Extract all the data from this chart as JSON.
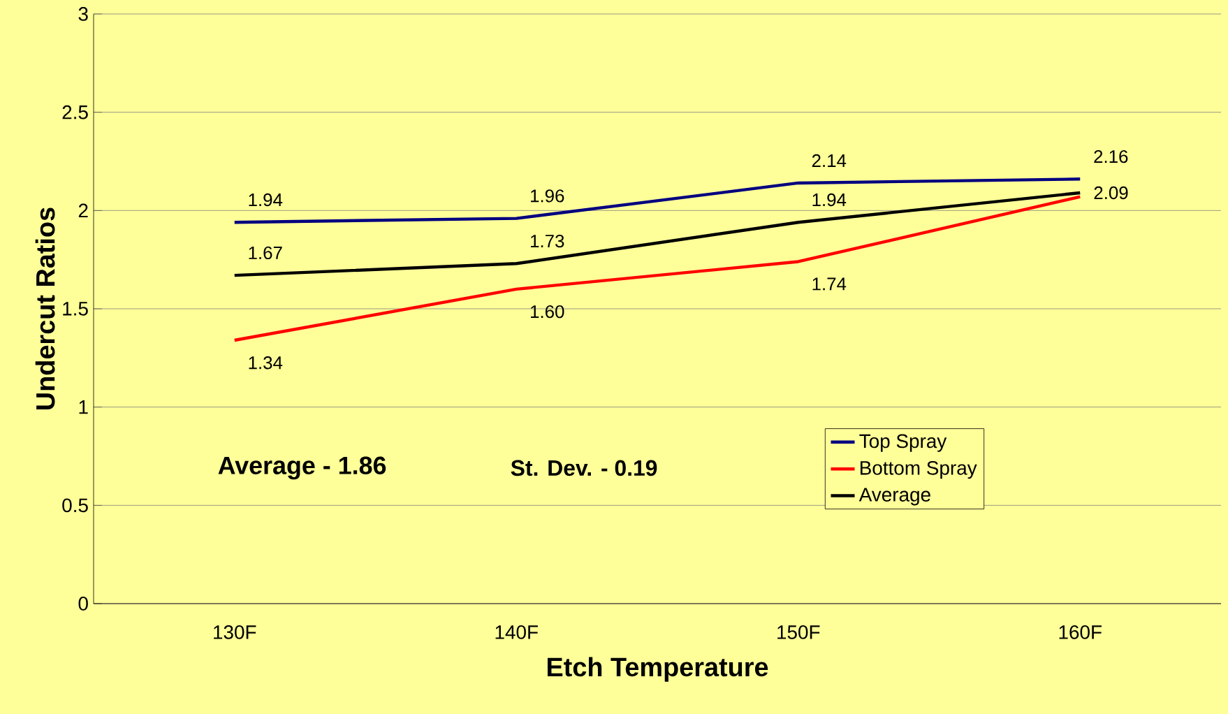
{
  "chart_data": {
    "type": "line",
    "xlabel": "Etch Temperature",
    "ylabel": "Undercut Ratios",
    "categories": [
      "130F",
      "140F",
      "150F",
      "160F"
    ],
    "series": [
      {
        "name": "Top Spray",
        "color": "#000080",
        "values": [
          1.94,
          1.96,
          2.14,
          2.16
        ],
        "value_labels": [
          "1.94",
          "1.96",
          "2.14",
          "2.16"
        ]
      },
      {
        "name": "Bottom Spray",
        "color": "#ff0000",
        "values": [
          1.34,
          1.6,
          1.74,
          2.07
        ],
        "value_labels": [
          "1.34",
          "1.60",
          "1.74",
          null
        ]
      },
      {
        "name": "Average",
        "color": "#000000",
        "values": [
          1.67,
          1.73,
          1.94,
          2.09
        ],
        "value_labels": [
          "1.67",
          "1.73",
          "1.94",
          "2.09"
        ]
      }
    ],
    "ylim": [
      0,
      3
    ],
    "yticks": [
      0,
      0.5,
      1,
      1.5,
      2,
      2.5,
      3
    ],
    "grid": "y",
    "legend": "bottom right",
    "marker": "none",
    "line_style": "solid",
    "annotations": [
      "Average - 1.86",
      "St. Dev. - 0.19"
    ]
  }
}
